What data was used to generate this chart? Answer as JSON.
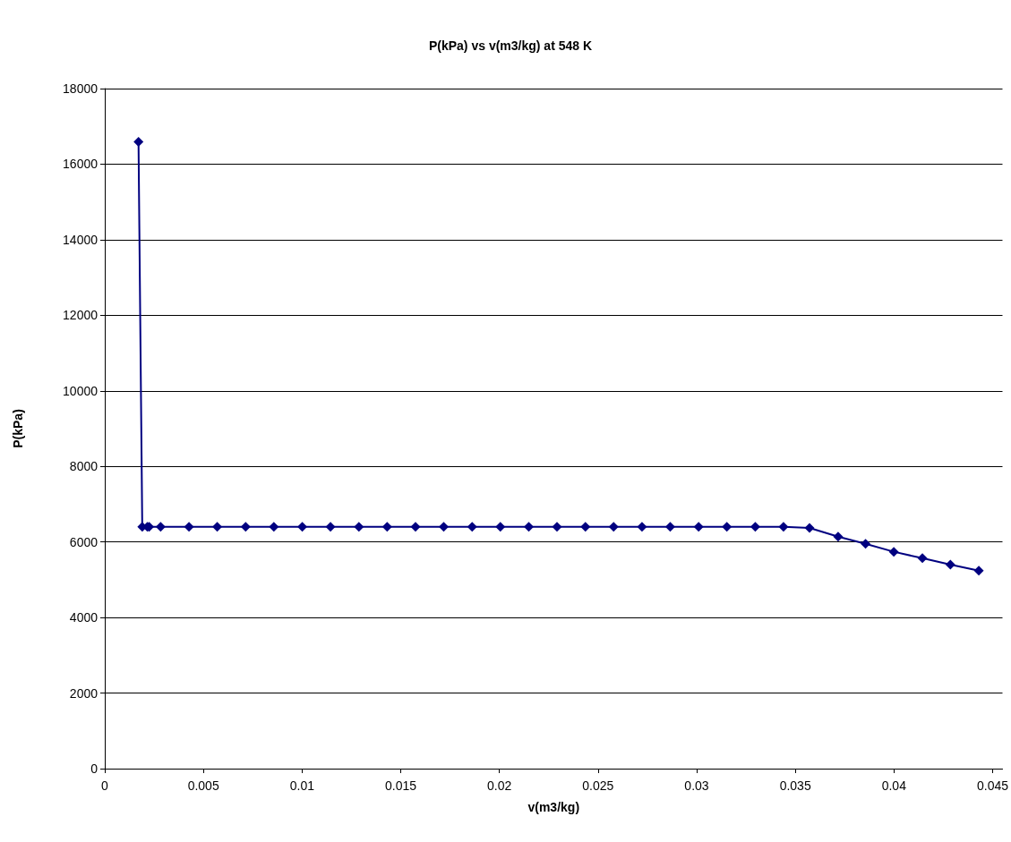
{
  "chart_data": {
    "type": "line",
    "title": "P(kPa) vs v(m3/kg) at 548 K",
    "xlabel": "v(m3/kg)",
    "ylabel": "P(kPa)",
    "x": [
      0.00171,
      0.0019,
      0.00216,
      0.00225,
      0.00283,
      0.00427,
      0.0057,
      0.00714,
      0.00857,
      0.01001,
      0.01144,
      0.01288,
      0.01431,
      0.01575,
      0.01718,
      0.01862,
      0.02005,
      0.02149,
      0.02292,
      0.02436,
      0.02579,
      0.02723,
      0.02866,
      0.0301,
      0.03153,
      0.03297,
      0.0344,
      0.03572,
      0.03717,
      0.03856,
      0.03999,
      0.04144,
      0.04286,
      0.0443
    ],
    "series": [
      {
        "color": "#000080",
        "values": [
          16590,
          6400,
          6400,
          6400,
          6400,
          6400,
          6400,
          6400,
          6400,
          6400,
          6400,
          6400,
          6400,
          6400,
          6400,
          6400,
          6400,
          6400,
          6400,
          6400,
          6400,
          6400,
          6400,
          6400,
          6400,
          6400,
          6400,
          6370,
          6140,
          5950,
          5740,
          5570,
          5400,
          5240
        ]
      }
    ],
    "xlim": [
      0,
      0.0455
    ],
    "xticks": [
      0,
      0.005,
      0.01,
      0.015,
      0.02,
      0.025,
      0.03,
      0.035,
      0.04,
      0.045
    ],
    "ylim": [
      0,
      18000
    ],
    "yticks": [
      0,
      2000,
      4000,
      6000,
      8000,
      10000,
      12000,
      14000,
      16000,
      18000
    ],
    "grid": "y",
    "marker": "diamond",
    "line_style": "solid"
  }
}
